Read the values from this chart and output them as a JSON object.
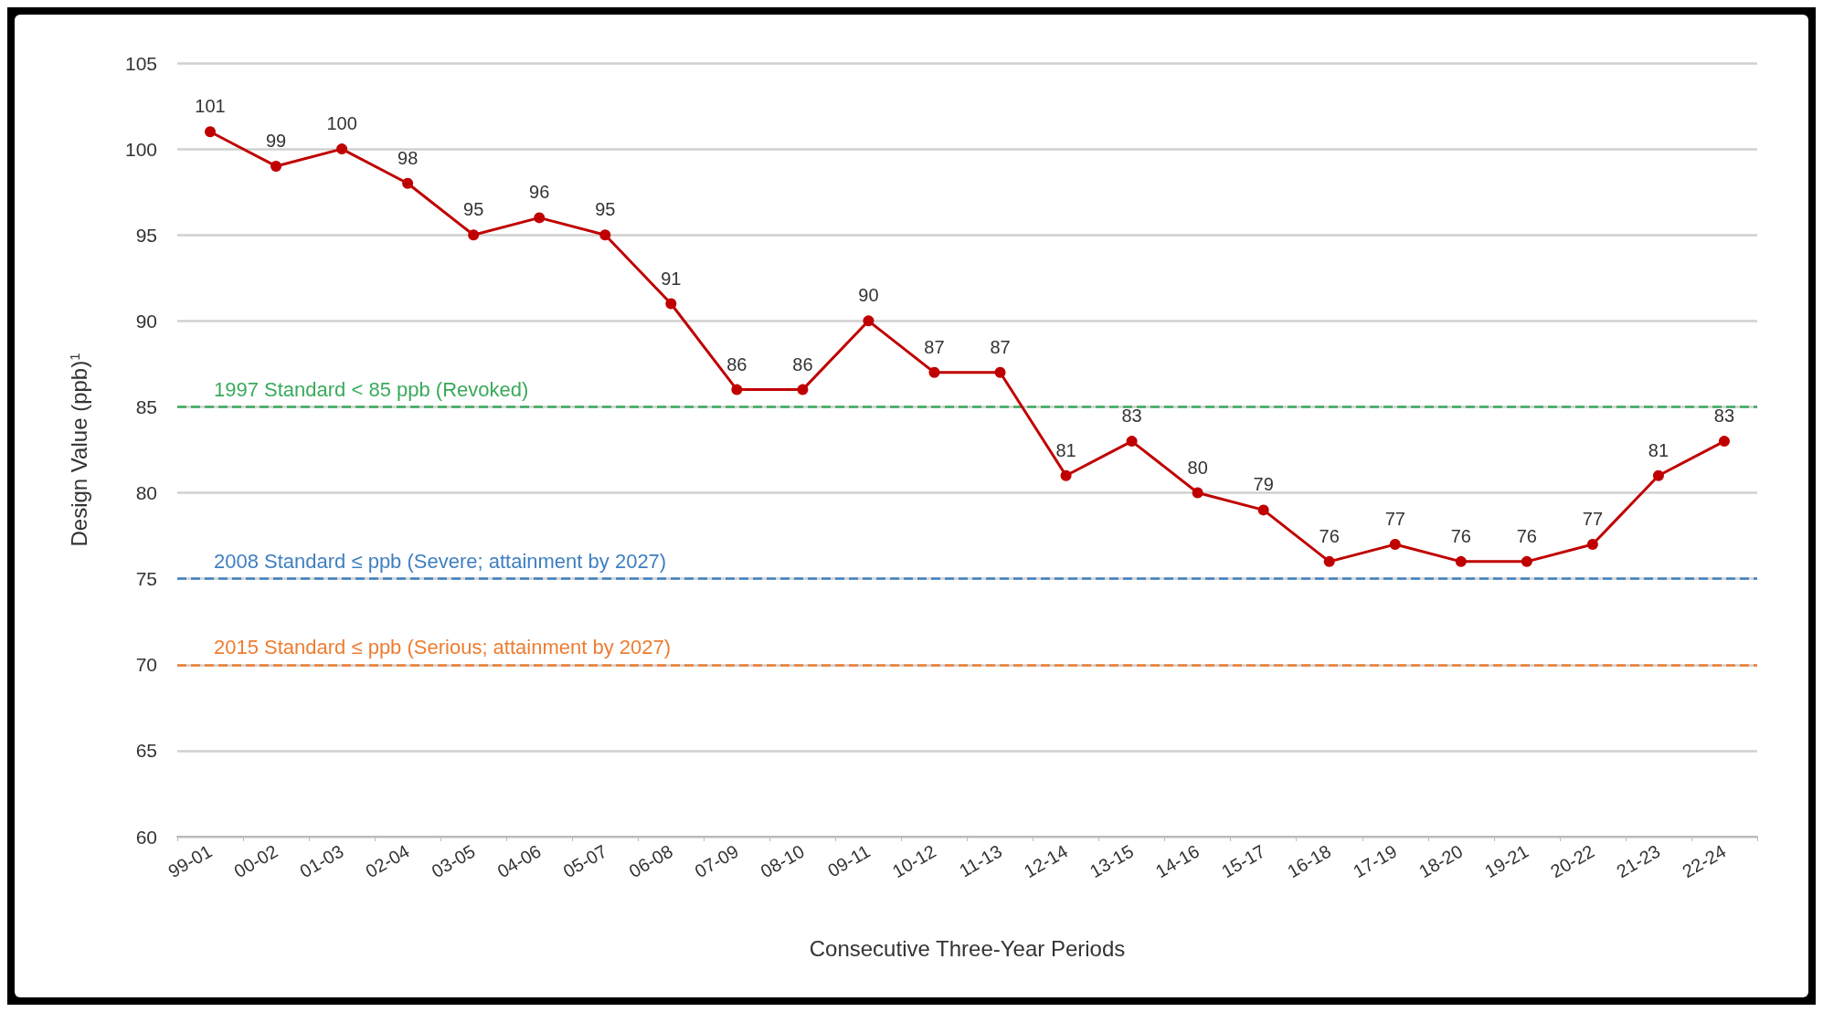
{
  "chart_data": {
    "type": "line",
    "xlabel": "Consecutive Three-Year Periods",
    "ylabel": "Design Value (ppb)$^{1}$",
    "categories": [
      "99-01",
      "00-02",
      "01-03",
      "02-04",
      "03-05",
      "04-06",
      "05-07",
      "06-08",
      "07-09",
      "08-10",
      "09-11",
      "10-12",
      "11-13",
      "12-14",
      "13-15",
      "14-16",
      "15-17",
      "16-18",
      "17-19",
      "18-20",
      "19-21",
      "20-22",
      "21-23",
      "22-24"
    ],
    "series": [
      {
        "color": "#c00000",
        "values": [
          101,
          99,
          100,
          98,
          95,
          96,
          95,
          91,
          86,
          86,
          90,
          87,
          87,
          81,
          83,
          80,
          79,
          76,
          77,
          76,
          76,
          77,
          81,
          83
        ]
      }
    ],
    "ylim": [
      60,
      105
    ],
    "yticks": [
      60,
      65,
      70,
      75,
      80,
      85,
      90,
      95,
      100,
      105
    ],
    "grid": "y",
    "marker": "circle",
    "line_style": "solid",
    "data_labels": true,
    "ref_lines": [
      {
        "axis": "y",
        "value": 85,
        "label": "1997 Standard < 85 ppb (Revoked)",
        "color": "#3aaa5c",
        "line_style": "dashed"
      },
      {
        "axis": "y",
        "value": 75,
        "label": "2008 Standard ≤ ppb (Severe; attainment by 2027)",
        "color": "#3f7fc1",
        "line_style": "dashed"
      },
      {
        "axis": "y",
        "value": 70,
        "label": "2015 Standard ≤ ppb (Serious; attainment by 2027)",
        "color": "#ed7d31",
        "line_style": "dashed"
      }
    ]
  }
}
